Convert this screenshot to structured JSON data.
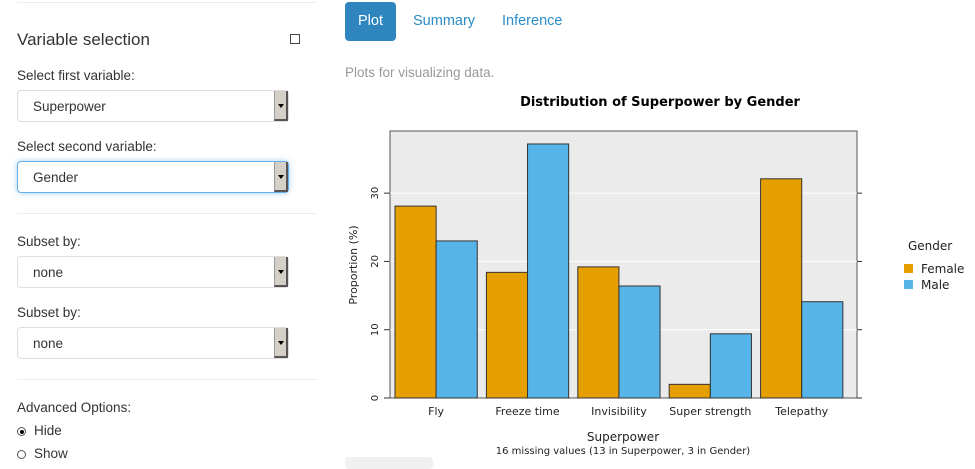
{
  "sidebar": {
    "title": "Variable selection",
    "first_label": "Select first variable:",
    "first_value": "Superpower",
    "second_label": "Select second variable:",
    "second_value": "Gender",
    "subset1_label": "Subset by:",
    "subset1_value": "none",
    "subset2_label": "Subset by:",
    "subset2_value": "none",
    "advanced_label": "Advanced Options:",
    "advanced_options": [
      {
        "label": "Hide",
        "selected": true
      },
      {
        "label": "Show",
        "selected": false
      }
    ]
  },
  "tabs": [
    {
      "label": "Plot",
      "active": true
    },
    {
      "label": "Summary",
      "active": false
    },
    {
      "label": "Inference",
      "active": false
    }
  ],
  "main": {
    "description": "Plots for visualizing data."
  },
  "chart_data": {
    "type": "bar",
    "title": "Distribution of Superpower by Gender",
    "xlabel": "Superpower",
    "ylabel": "Proportion (%)",
    "subtitle": "16 missing values (13 in Superpower, 3 in Gender)",
    "categories": [
      "Fly",
      "Freeze time",
      "Invisibility",
      "Super strength",
      "Telepathy"
    ],
    "series": [
      {
        "name": "Female",
        "color": "#E69F00",
        "values": [
          28.1,
          18.4,
          19.2,
          2.0,
          32.1
        ]
      },
      {
        "name": "Male",
        "color": "#56B4E9",
        "values": [
          23.0,
          37.2,
          16.4,
          9.4,
          14.1
        ]
      }
    ],
    "ylim": [
      0,
      39.1
    ],
    "yticks": [
      0,
      10,
      20,
      30
    ],
    "legend_title": "Gender",
    "legend_position": "right",
    "grid": true
  }
}
